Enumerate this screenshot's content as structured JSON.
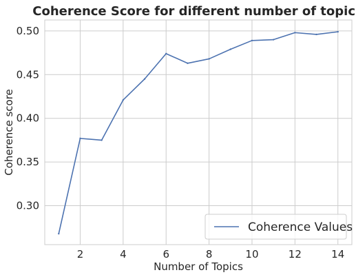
{
  "chart_data": {
    "type": "line",
    "title": "Coherence Score for different number of topics",
    "xlabel": "Number of Topics",
    "ylabel": "Coherence score",
    "xlim": [
      0.35,
      14.65
    ],
    "ylim": [
      0.2555,
      0.5125
    ],
    "xticks": [
      2,
      4,
      6,
      8,
      10,
      12,
      14
    ],
    "xtick_labels": [
      "2",
      "4",
      "6",
      "8",
      "10",
      "12",
      "14"
    ],
    "yticks": [
      0.3,
      0.35,
      0.4,
      0.45,
      0.5
    ],
    "ytick_labels": [
      "0.30",
      "0.35",
      "0.40",
      "0.45",
      "0.50"
    ],
    "grid": true,
    "legend_position": "lower-right",
    "series": [
      {
        "name": "Coherence Values",
        "color": "#4c72b0",
        "x": [
          1,
          2,
          3,
          4,
          5,
          6,
          7,
          8,
          9,
          10,
          11,
          12,
          13,
          14
        ],
        "y": [
          0.268,
          0.377,
          0.375,
          0.421,
          0.445,
          0.474,
          0.463,
          0.468,
          0.479,
          0.489,
          0.49,
          0.498,
          0.496,
          0.499
        ]
      }
    ]
  }
}
